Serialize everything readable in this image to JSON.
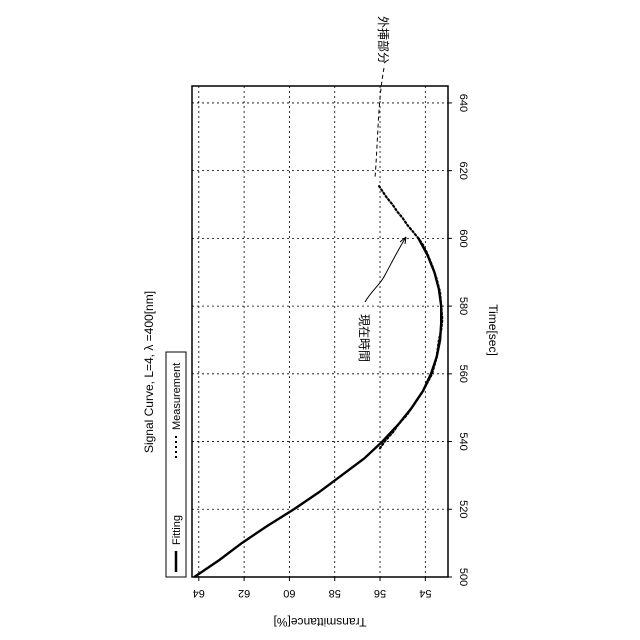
{
  "chart_data": {
    "type": "line",
    "title": "Signal Curve, L=4, λ =400[nm]",
    "xlabel": "Time[sec]",
    "ylabel": "Transmittance[%]",
    "xlim": [
      500,
      645
    ],
    "ylim": [
      53,
      64.3
    ],
    "x_ticks": [
      500,
      520,
      540,
      560,
      580,
      600,
      620,
      640
    ],
    "y_ticks": [
      54,
      56,
      58,
      60,
      62,
      64
    ],
    "grid": true,
    "orientation": "rotated 90 degrees clockwise",
    "legend": {
      "placement": "top-left",
      "entries": [
        {
          "label": "Fitting",
          "style": "solid"
        },
        {
          "label": "Measurement",
          "style": "dotted"
        }
      ]
    },
    "series": [
      {
        "name": "Fitting",
        "style": "solid",
        "x": [
          500,
          505,
          510,
          515,
          520,
          525,
          530,
          535,
          540,
          545,
          550,
          555,
          560,
          565,
          570,
          575,
          580,
          585,
          590,
          595,
          600
        ],
        "y": [
          64.2,
          63.1,
          62.1,
          61.0,
          59.8,
          58.7,
          57.7,
          56.7,
          55.9,
          55.2,
          54.6,
          54.1,
          53.75,
          53.5,
          53.35,
          53.3,
          53.3,
          53.4,
          53.6,
          53.9,
          54.3
        ]
      },
      {
        "name": "Measurement",
        "style": "dotted",
        "x": [
          538,
          540,
          543,
          545,
          548,
          551,
          555,
          560,
          565,
          570,
          573,
          576,
          580,
          584,
          588,
          592,
          596,
          598,
          600
        ],
        "y": [
          56.0,
          55.8,
          55.4,
          55.2,
          54.8,
          54.5,
          54.1,
          53.7,
          53.5,
          53.4,
          53.3,
          53.25,
          53.3,
          53.35,
          53.5,
          53.7,
          53.95,
          54.1,
          54.3
        ]
      },
      {
        "name": "外挿部分",
        "style": "dotted",
        "x": [
          600,
          602,
          604,
          606,
          608,
          610,
          612,
          614,
          616
        ],
        "y": [
          54.3,
          54.55,
          54.8,
          55.0,
          55.25,
          55.45,
          55.7,
          55.9,
          56.1
        ]
      }
    ],
    "annotations": [
      {
        "text": "現在時間",
        "target_x": 600,
        "target_y": 54.3
      },
      {
        "text": "外挿部分",
        "target_x": 614,
        "target_y": 55.9
      }
    ]
  }
}
